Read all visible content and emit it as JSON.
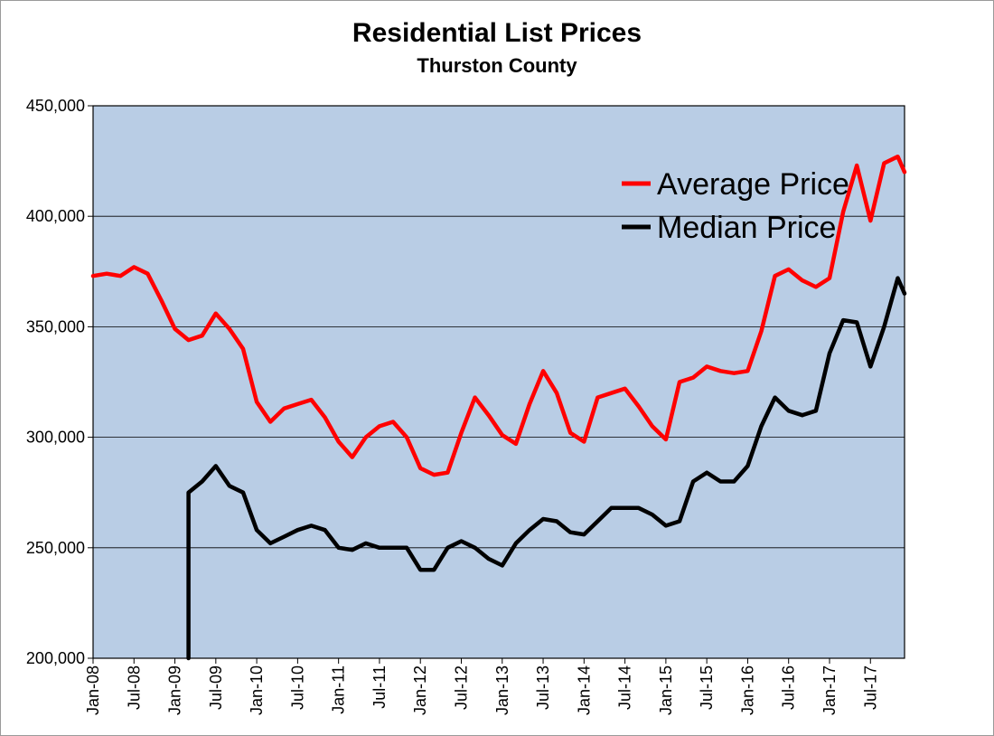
{
  "title": "Residential List Prices",
  "subtitle": "Thurston County",
  "chart_data": {
    "type": "line",
    "title": "Residential List Prices",
    "subtitle": "Thurston County",
    "xlabel": "",
    "ylabel": "",
    "ylim": [
      200000,
      450000
    ],
    "yticks": [
      200000,
      250000,
      300000,
      350000,
      400000,
      450000
    ],
    "ytick_labels": [
      "200,000",
      "250,000",
      "300,000",
      "350,000",
      "400,000",
      "450,000"
    ],
    "x_range": [
      "Jan-08",
      "Dec-17"
    ],
    "xtick_labels": [
      "Jan-08",
      "Jul-08",
      "Jan-09",
      "Jul-09",
      "Jan-10",
      "Jul-10",
      "Jan-11",
      "Jul-11",
      "Jan-12",
      "Jul-12",
      "Jan-13",
      "Jul-13",
      "Jan-14",
      "Jul-14",
      "Jan-15",
      "Jul-15",
      "Jan-16",
      "Jul-16",
      "Jan-17",
      "Jul-17"
    ],
    "grid": true,
    "legend_position": "top-right",
    "plot_background": "#b9cde5",
    "series": [
      {
        "name": "Average Price",
        "color": "#ff0000",
        "x": [
          "Jan-08",
          "Mar-08",
          "May-08",
          "Jul-08",
          "Sep-08",
          "Nov-08",
          "Jan-09",
          "Mar-09",
          "May-09",
          "Jul-09",
          "Sep-09",
          "Nov-09",
          "Jan-10",
          "Mar-10",
          "May-10",
          "Jul-10",
          "Sep-10",
          "Nov-10",
          "Jan-11",
          "Mar-11",
          "May-11",
          "Jul-11",
          "Sep-11",
          "Nov-11",
          "Jan-12",
          "Mar-12",
          "May-12",
          "Jul-12",
          "Sep-12",
          "Nov-12",
          "Jan-13",
          "Mar-13",
          "May-13",
          "Jul-13",
          "Sep-13",
          "Nov-13",
          "Jan-14",
          "Mar-14",
          "May-14",
          "Jul-14",
          "Sep-14",
          "Nov-14",
          "Jan-15",
          "Mar-15",
          "May-15",
          "Jul-15",
          "Sep-15",
          "Nov-15",
          "Jan-16",
          "Mar-16",
          "May-16",
          "Jul-16",
          "Sep-16",
          "Nov-16",
          "Jan-17",
          "Mar-17",
          "May-17",
          "Jul-17",
          "Sep-17",
          "Nov-17",
          "Dec-17"
        ],
        "values": [
          373000,
          374000,
          373000,
          377000,
          374000,
          362000,
          349000,
          344000,
          346000,
          356000,
          349000,
          340000,
          316000,
          307000,
          313000,
          315000,
          317000,
          309000,
          298000,
          291000,
          300000,
          305000,
          307000,
          300000,
          286000,
          283000,
          284000,
          302000,
          318000,
          310000,
          301000,
          297000,
          315000,
          330000,
          320000,
          302000,
          298000,
          318000,
          320000,
          322000,
          314000,
          305000,
          299000,
          325000,
          327000,
          332000,
          330000,
          329000,
          330000,
          348000,
          373000,
          376000,
          371000,
          368000,
          372000,
          402000,
          423000,
          398000,
          424000,
          427000,
          420000
        ]
      },
      {
        "name": "Median Price",
        "color": "#000000",
        "x": [
          "Mar-09",
          "May-09",
          "Jul-09",
          "Sep-09",
          "Nov-09",
          "Jan-10",
          "Mar-10",
          "May-10",
          "Jul-10",
          "Sep-10",
          "Nov-10",
          "Jan-11",
          "Mar-11",
          "May-11",
          "Jul-11",
          "Sep-11",
          "Nov-11",
          "Jan-12",
          "Mar-12",
          "May-12",
          "Jul-12",
          "Sep-12",
          "Nov-12",
          "Jan-13",
          "Mar-13",
          "May-13",
          "Jul-13",
          "Sep-13",
          "Nov-13",
          "Jan-14",
          "Mar-14",
          "May-14",
          "Jul-14",
          "Sep-14",
          "Nov-14",
          "Jan-15",
          "Mar-15",
          "May-15",
          "Jul-15",
          "Sep-15",
          "Nov-15",
          "Jan-16",
          "Mar-16",
          "May-16",
          "Jul-16",
          "Sep-16",
          "Nov-16",
          "Jan-17",
          "Mar-17",
          "May-17",
          "Jul-17",
          "Sep-17",
          "Nov-17",
          "Dec-17"
        ],
        "values": [
          275000,
          280000,
          287000,
          278000,
          275000,
          258000,
          252000,
          255000,
          258000,
          260000,
          258000,
          250000,
          249000,
          252000,
          250000,
          250000,
          250000,
          240000,
          240000,
          250000,
          253000,
          250000,
          245000,
          242000,
          252000,
          258000,
          263000,
          262000,
          257000,
          256000,
          262000,
          268000,
          268000,
          268000,
          265000,
          260000,
          262000,
          280000,
          284000,
          280000,
          280000,
          287000,
          305000,
          318000,
          312000,
          310000,
          312000,
          338000,
          353000,
          352000,
          332000,
          350000,
          372000,
          365000
        ]
      }
    ]
  }
}
